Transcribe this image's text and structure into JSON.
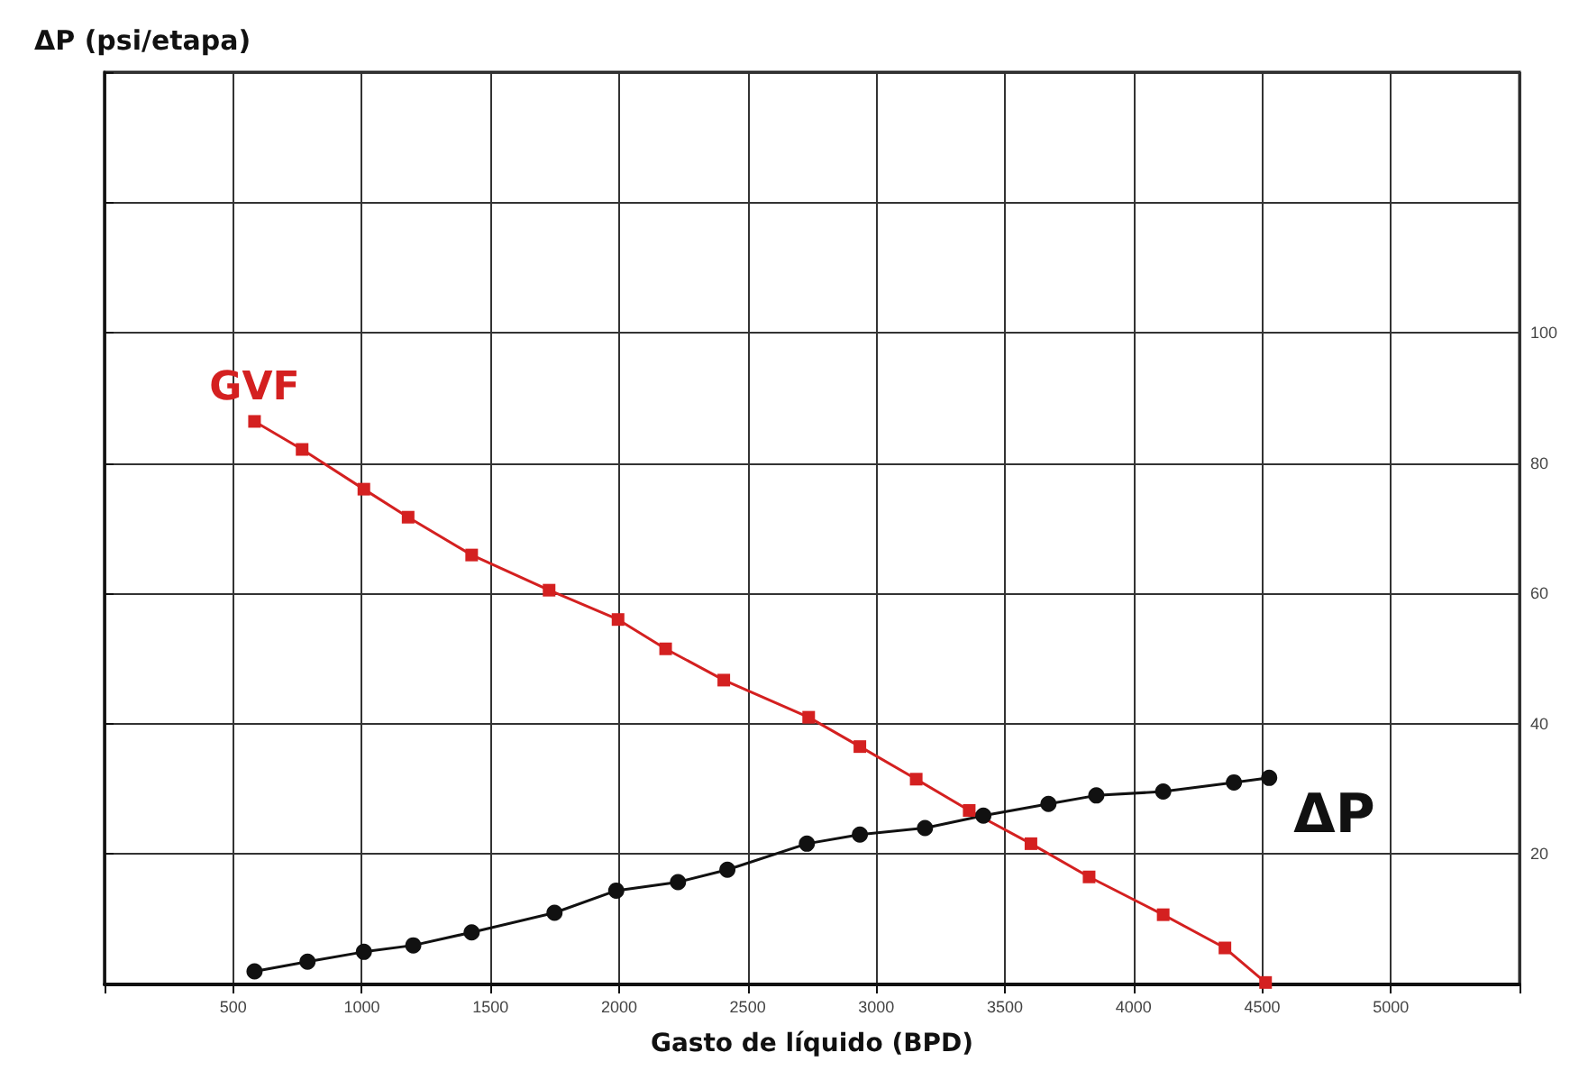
{
  "chart_data": {
    "type": "line",
    "xlabel": "Gasto de líquido (BPD)",
    "ylabel": "ΔP (psi/etapa)",
    "xlim": [
      0,
      5500
    ],
    "xticks": [
      {
        "value": 0,
        "label": null
      },
      500,
      1000,
      1500,
      2000,
      2500,
      3000,
      3500,
      4000,
      4500,
      5000,
      {
        "value": 5500,
        "label": null
      }
    ],
    "ylim": [
      0,
      140
    ],
    "yticks": [
      {
        "value": 0,
        "label": null
      },
      20,
      40,
      60,
      80,
      100,
      {
        "value": 120,
        "label": null
      },
      {
        "value": 140,
        "label": null
      }
    ],
    "grid": true,
    "legend": false,
    "series": [
      {
        "name": "GVF",
        "color": "#d42020",
        "marker": "square",
        "x": [
          583,
          768,
          1008,
          1180,
          1427,
          1728,
          1996,
          2181,
          2407,
          2737,
          2936,
          3155,
          3361,
          3601,
          3827,
          4115,
          4355,
          4513
        ],
        "values": [
          86.4,
          82.1,
          76,
          71.7,
          65.9,
          60.5,
          56,
          51.5,
          46.7,
          41,
          36.5,
          31.5,
          26.7,
          21.6,
          16.5,
          10.7,
          5.6,
          0.3
        ]
      },
      {
        "name": "ΔP",
        "color": "#111111",
        "marker": "circle",
        "x": [
          583,
          789,
          1008,
          1200,
          1427,
          1749,
          1989,
          2229,
          2421,
          2730,
          2936,
          3189,
          3416,
          3669,
          3855,
          4115,
          4390,
          4527
        ],
        "values": [
          2,
          3.5,
          5,
          6,
          8,
          11,
          14.4,
          15.7,
          17.6,
          21.6,
          23,
          24,
          25.9,
          27.7,
          29,
          29.6,
          31,
          31.7
        ]
      }
    ]
  }
}
